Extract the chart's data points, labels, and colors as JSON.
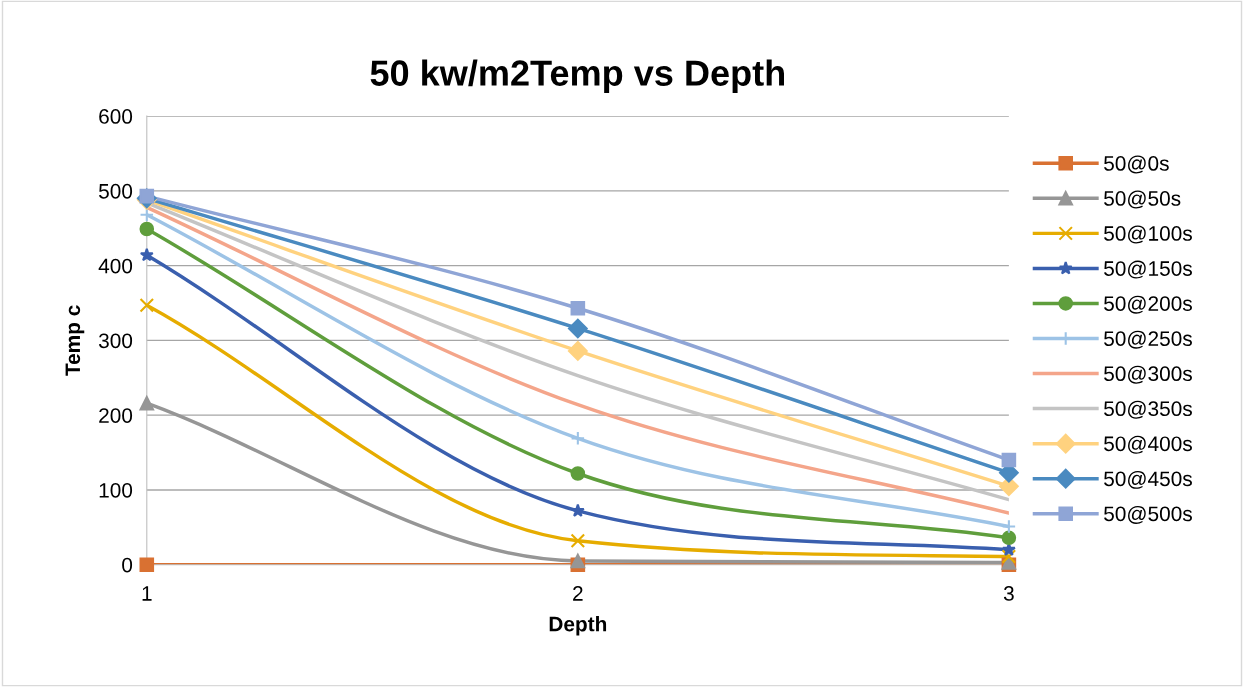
{
  "chart_data": {
    "type": "line",
    "title": "50 kw/m2Temp vs Depth",
    "xlabel": "Depth",
    "ylabel": "Temp c",
    "x": [
      1,
      2,
      3
    ],
    "xlim": [
      1,
      3
    ],
    "xticks": [
      1,
      2,
      3
    ],
    "ylim": [
      0,
      600
    ],
    "yticks": [
      0,
      100,
      200,
      300,
      400,
      500,
      600
    ],
    "grid": "y",
    "legend": "right",
    "series": [
      {
        "name": "50@0s",
        "color": "#D97132",
        "marker": "square",
        "values": [
          0,
          0,
          0
        ]
      },
      {
        "name": "50@50s",
        "color": "#969696",
        "marker": "triangle",
        "values": [
          216,
          5,
          3
        ]
      },
      {
        "name": "50@100s",
        "color": "#E6AC00",
        "marker": "cross",
        "values": [
          347,
          32,
          11
        ]
      },
      {
        "name": "50@150s",
        "color": "#3A5FAE",
        "marker": "star",
        "values": [
          414,
          72,
          20
        ]
      },
      {
        "name": "50@200s",
        "color": "#5F9E3C",
        "marker": "circle",
        "values": [
          449,
          122,
          36
        ]
      },
      {
        "name": "50@250s",
        "color": "#9DC3E6",
        "marker": "plus",
        "values": [
          468,
          169,
          51
        ]
      },
      {
        "name": "50@300s",
        "color": "#F4A58A",
        "marker": "none",
        "values": [
          478,
          214,
          69
        ]
      },
      {
        "name": "50@350s",
        "color": "#C4C4C4",
        "marker": "none",
        "values": [
          484,
          253,
          87
        ]
      },
      {
        "name": "50@400s",
        "color": "#FFD27F",
        "marker": "diamond",
        "values": [
          488,
          286,
          105
        ]
      },
      {
        "name": "50@450s",
        "color": "#4A8AC0",
        "marker": "diamond",
        "values": [
          490,
          316,
          123
        ]
      },
      {
        "name": "50@500s",
        "color": "#8FA5D6",
        "marker": "square",
        "values": [
          493,
          343,
          140
        ]
      }
    ]
  }
}
